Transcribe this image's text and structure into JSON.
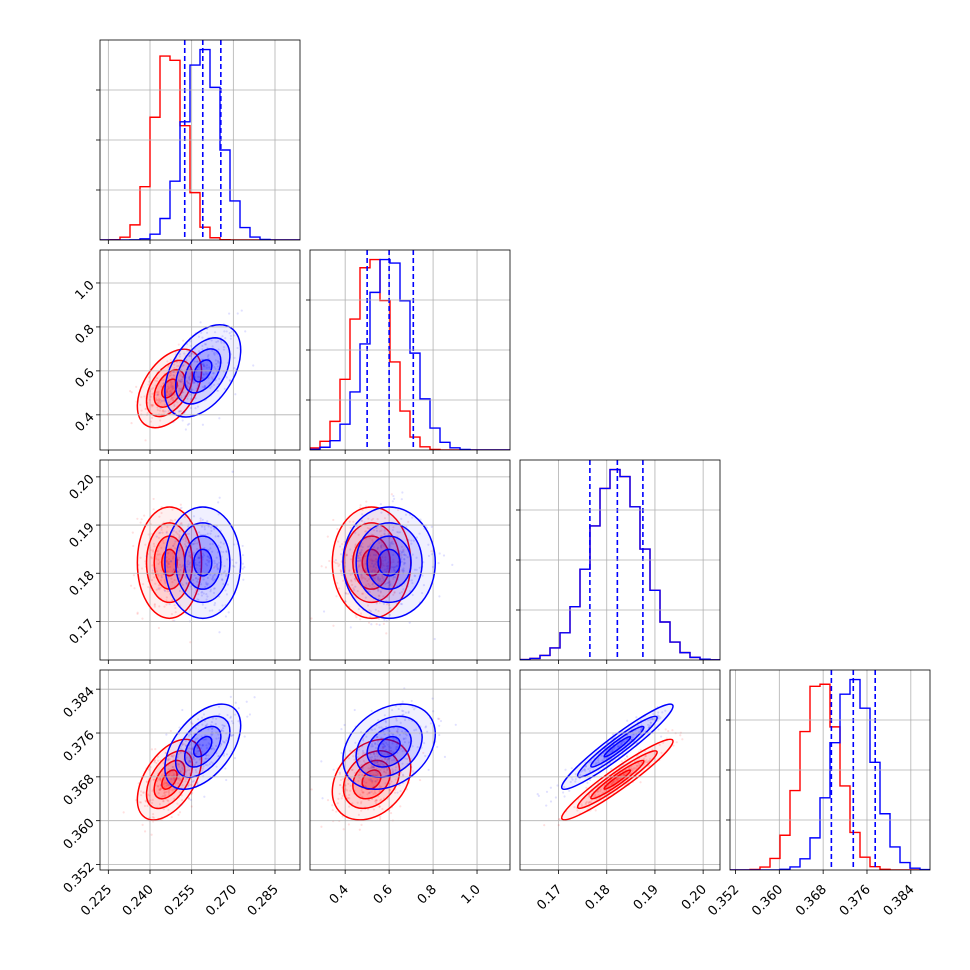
{
  "chart_data": {
    "type": "corner",
    "grid": true,
    "colors": {
      "series_a": "#ff0000",
      "series_b": "#0000ff"
    },
    "series": [
      {
        "color": "#ff0000",
        "params": [
          {
            "mean": 0.247,
            "sd": 0.0055
          },
          {
            "mean": 0.52,
            "sd": 0.085
          },
          {
            "mean": 0.1822,
            "sd": 0.0055
          },
          {
            "mean": 0.3675,
            "sd": 0.0035
          }
        ]
      },
      {
        "color": "#0000ff",
        "params": [
          {
            "mean": 0.259,
            "sd": 0.0065
          },
          {
            "mean": 0.6,
            "sd": 0.1
          },
          {
            "mean": 0.1822,
            "sd": 0.0055
          },
          {
            "mean": 0.3735,
            "sd": 0.0037
          }
        ],
        "quantile_lines": [
          [
            0.2525,
            0.259,
            0.2655
          ],
          [
            0.5,
            0.6,
            0.71
          ],
          [
            0.1765,
            0.1822,
            0.1875
          ],
          [
            0.3695,
            0.3735,
            0.3775
          ]
        ]
      }
    ],
    "correlations": {
      "p0_p1": 0.45,
      "p0_p2": 0.0,
      "p0_p3": 0.5,
      "p1_p2": 0.0,
      "p1_p3": 0.3,
      "p2_p3": 0.95
    },
    "axes": [
      {
        "range": [
          0.222,
          0.294
        ],
        "ticks": [
          0.225,
          0.24,
          0.255,
          0.27,
          0.285
        ],
        "tick_labels": [
          "0.225",
          "0.240",
          "0.255",
          "0.270",
          "0.285"
        ]
      },
      {
        "range": [
          0.24,
          1.15
        ],
        "ticks": [
          0.4,
          0.6,
          0.8,
          1.0
        ],
        "tick_labels": [
          "0.4",
          "0.6",
          "0.8",
          "1.0"
        ]
      },
      {
        "range": [
          0.162,
          0.2035
        ],
        "ticks": [
          0.17,
          0.18,
          0.19,
          0.2
        ],
        "tick_labels": [
          "0.17",
          "0.18",
          "0.19",
          "0.20"
        ]
      },
      {
        "range": [
          0.351,
          0.3875
        ],
        "ticks": [
          0.352,
          0.36,
          0.368,
          0.376,
          0.384
        ],
        "tick_labels": [
          "0.352",
          "0.360",
          "0.368",
          "0.376",
          "0.384"
        ]
      }
    ],
    "title": "",
    "xlabel": "",
    "ylabel": ""
  }
}
